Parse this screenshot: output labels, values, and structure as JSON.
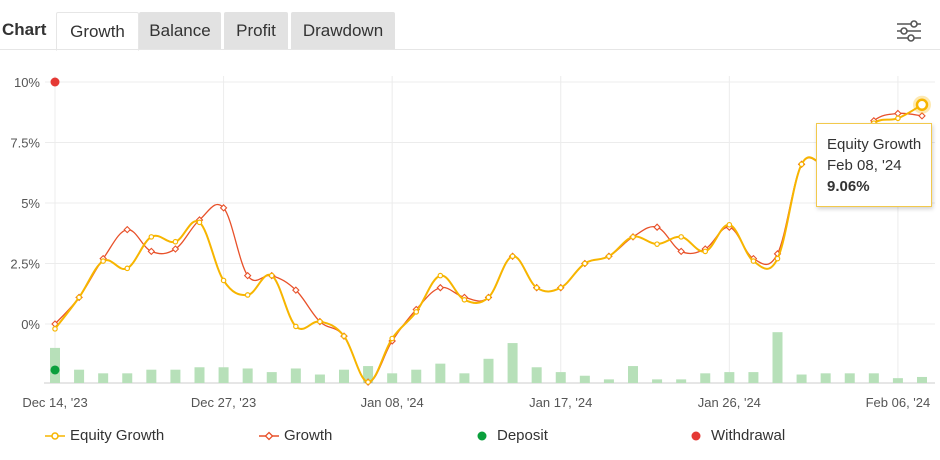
{
  "tabs": {
    "chart_label": "Chart",
    "items": [
      {
        "label": "Growth",
        "active": true
      },
      {
        "label": "Balance",
        "active": false
      },
      {
        "label": "Profit",
        "active": false
      },
      {
        "label": "Drawdown",
        "active": false
      }
    ]
  },
  "tooltip": {
    "series": "Equity Growth",
    "date": "Feb 08, '24",
    "value": "9.06%"
  },
  "colors": {
    "equity_growth": "#f7b500",
    "growth": "#e8512a",
    "deposit": "#0a9f3c",
    "withdrawal": "#e53935",
    "bars": "#b7e0b9",
    "grid": "#ececec"
  },
  "chart_data": {
    "type": "line",
    "ylim": [
      -2.5,
      10
    ],
    "y_ticks": [
      {
        "value": 10,
        "label": "10%"
      },
      {
        "value": 7.5,
        "label": "7.5%"
      },
      {
        "value": 5,
        "label": "5%"
      },
      {
        "value": 2.5,
        "label": "2.5%"
      },
      {
        "value": 0,
        "label": "0%"
      }
    ],
    "x_ticks": [
      {
        "index": 0,
        "label": "Dec 14, '23"
      },
      {
        "index": 7,
        "label": "Dec 27, '23"
      },
      {
        "index": 14,
        "label": "Jan 08, '24"
      },
      {
        "index": 21,
        "label": "Jan 17, '24"
      },
      {
        "index": 28,
        "label": "Jan 26, '24"
      },
      {
        "index": 35,
        "label": "Feb 06, '24"
      }
    ],
    "grid": true,
    "legend_position": "bottom",
    "series": [
      {
        "name": "Equity Growth",
        "values": [
          -0.2,
          1.1,
          2.6,
          2.3,
          3.6,
          3.4,
          4.2,
          1.8,
          1.2,
          2.0,
          -0.1,
          0.1,
          -0.5,
          -2.4,
          -0.6,
          0.5,
          2.0,
          1.0,
          1.1,
          2.8,
          1.5,
          1.5,
          2.5,
          2.8,
          3.6,
          3.3,
          3.6,
          3.0,
          4.1,
          2.6,
          2.7,
          6.6,
          6.6,
          7.1,
          8.3,
          8.5,
          9.06
        ]
      },
      {
        "name": "Growth",
        "values": [
          0.0,
          1.1,
          2.7,
          3.9,
          3.0,
          3.1,
          4.3,
          4.8,
          2.0,
          2.0,
          1.4,
          0.1,
          -0.5,
          -2.4,
          -0.7,
          0.6,
          1.5,
          1.1,
          1.1,
          2.8,
          1.5,
          1.5,
          2.5,
          2.8,
          3.6,
          4.0,
          3.0,
          3.1,
          4.0,
          2.7,
          2.9,
          6.6,
          6.6,
          7.2,
          8.4,
          8.7,
          8.6
        ]
      },
      {
        "name": "Deposit",
        "points": [
          {
            "index": 0,
            "value": -1.9
          }
        ]
      },
      {
        "name": "Withdrawal",
        "points": [
          {
            "index": 0,
            "value": 10
          }
        ]
      }
    ],
    "volume_bars": [
      1.45,
      0.55,
      0.4,
      0.4,
      0.55,
      0.55,
      0.65,
      0.65,
      0.6,
      0.45,
      0.6,
      0.35,
      0.55,
      0.7,
      0.4,
      0.55,
      0.8,
      0.4,
      1.0,
      1.65,
      0.65,
      0.45,
      0.3,
      0.15,
      0.7,
      0.15,
      0.15,
      0.4,
      0.45,
      0.45,
      2.1,
      0.35,
      0.4,
      0.4,
      0.4,
      0.2,
      0.25
    ]
  },
  "legend": [
    {
      "label": "Equity Growth",
      "icon": "line-circle-icon"
    },
    {
      "label": "Growth",
      "icon": "line-diamond-icon"
    },
    {
      "label": "Deposit",
      "icon": "dot-icon"
    },
    {
      "label": "Withdrawal",
      "icon": "dot-icon"
    }
  ]
}
